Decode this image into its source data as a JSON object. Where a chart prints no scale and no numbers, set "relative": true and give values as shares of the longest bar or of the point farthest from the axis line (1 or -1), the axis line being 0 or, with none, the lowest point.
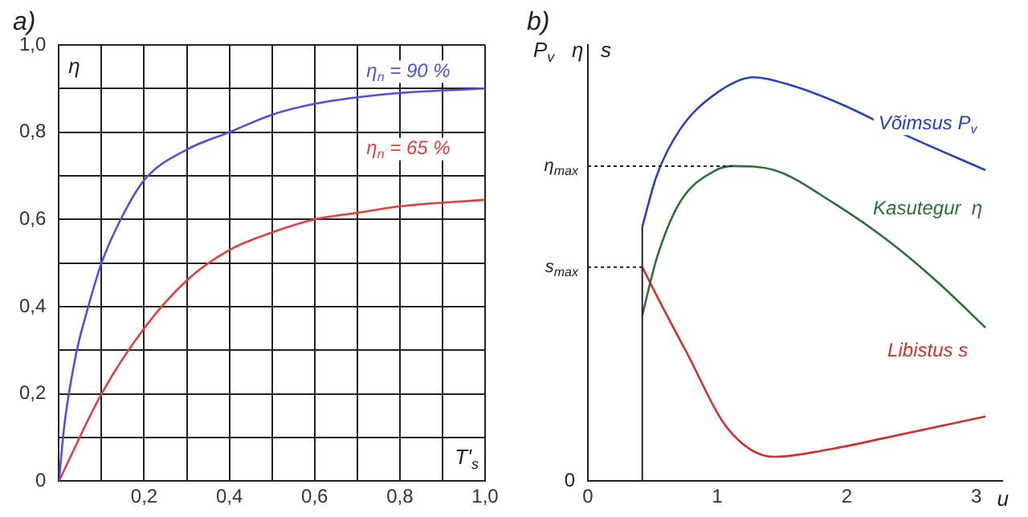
{
  "chart_data": [
    {
      "type": "line",
      "title": "a)",
      "xlabel": "T'$_{s}$",
      "ylabel": "η",
      "xlim": [
        0,
        1.0
      ],
      "ylim": [
        0,
        1.0
      ],
      "xticks": [
        {
          "value": 0,
          "label": null
        },
        {
          "value": 0.1,
          "label": null
        },
        {
          "value": 0.2,
          "label": "0,2"
        },
        {
          "value": 0.3,
          "label": null
        },
        {
          "value": 0.4,
          "label": "0,4"
        },
        {
          "value": 0.5,
          "label": null
        },
        {
          "value": 0.6,
          "label": "0,6"
        },
        {
          "value": 0.7,
          "label": null
        },
        {
          "value": 0.8,
          "label": "0,8"
        },
        {
          "value": 0.9,
          "label": null
        },
        {
          "value": 1.0,
          "label": "1,0"
        }
      ],
      "yticks": [
        0,
        {
          "value": 0.1,
          "label": null
        },
        {
          "value": 0.2,
          "label": "0,2"
        },
        {
          "value": 0.3,
          "label": null
        },
        {
          "value": 0.4,
          "label": "0,4"
        },
        {
          "value": 0.5,
          "label": null
        },
        {
          "value": 0.6,
          "label": "0,6"
        },
        {
          "value": 0.7,
          "label": null
        },
        {
          "value": 0.8,
          "label": "0,8"
        },
        {
          "value": 0.9,
          "label": null
        },
        {
          "value": 1.0,
          "label": "1,0"
        }
      ],
      "grid": true,
      "series": [
        {
          "name": "η$_{n}$ = 90 %",
          "color": "#5050e0",
          "x": [
            0,
            0.013,
            0.04,
            0.066,
            0.1,
            0.145,
            0.2,
            0.3,
            0.4,
            0.5,
            0.6,
            0.7,
            0.8,
            1.0
          ],
          "values": [
            0,
            0.13,
            0.29,
            0.39,
            0.5,
            0.6,
            0.69,
            0.76,
            0.8,
            0.84,
            0.865,
            0.88,
            0.89,
            0.9
          ]
        },
        {
          "name": "η$_{n}$ = 65 %",
          "color": "#e04040",
          "x": [
            0,
            0.1,
            0.2,
            0.3,
            0.4,
            0.5,
            0.6,
            0.7,
            0.8,
            1.0
          ],
          "values": [
            0,
            0.2,
            0.35,
            0.46,
            0.53,
            0.57,
            0.6,
            0.615,
            0.63,
            0.645
          ]
        }
      ]
    },
    {
      "type": "line",
      "title": "b)",
      "xlabel": "u",
      "ylabel": "P$_{v}$   η   s",
      "relative": true,
      "xlim": [
        0,
        3.2
      ],
      "xticks": [
        0,
        1,
        2,
        3
      ],
      "ref_lines": [
        {
          "axis": "y",
          "value": 0.78,
          "label": "η$_{max}$",
          "line_style": "dotted"
        },
        {
          "axis": "y",
          "value": 0.53,
          "label": "s$_{max}$",
          "line_style": "dotted"
        },
        {
          "axis": "x",
          "value": 0.42,
          "label": null
        }
      ],
      "annotations": [
        "0"
      ],
      "series": [
        {
          "name": "Võimsus P$_{v}$",
          "color": "#2a3fbf",
          "x": [
            0.42,
            0.53,
            0.71,
            0.99,
            1.28,
            1.57,
            1.98,
            2.43,
            3.07
          ],
          "values": [
            0.63,
            0.755,
            0.87,
            0.96,
            1.0,
            0.98,
            0.93,
            0.86,
            0.77
          ]
        },
        {
          "name": "Kasutegur  η",
          "color": "#2e6e3a",
          "x": [
            0.42,
            0.53,
            0.71,
            0.99,
            1.12,
            1.44,
            1.89,
            2.34,
            2.71,
            3.07
          ],
          "values": [
            0.41,
            0.55,
            0.69,
            0.77,
            0.78,
            0.77,
            0.69,
            0.59,
            0.49,
            0.38
          ]
        },
        {
          "name": "Libistus s",
          "color": "#d03030",
          "x": [
            0.42,
            0.53,
            0.76,
            1.08,
            1.44,
            1.89,
            2.34,
            3.07
          ],
          "values": [
            0.53,
            0.46,
            0.32,
            0.13,
            0.06,
            0.08,
            0.11,
            0.16
          ]
        }
      ]
    }
  ]
}
